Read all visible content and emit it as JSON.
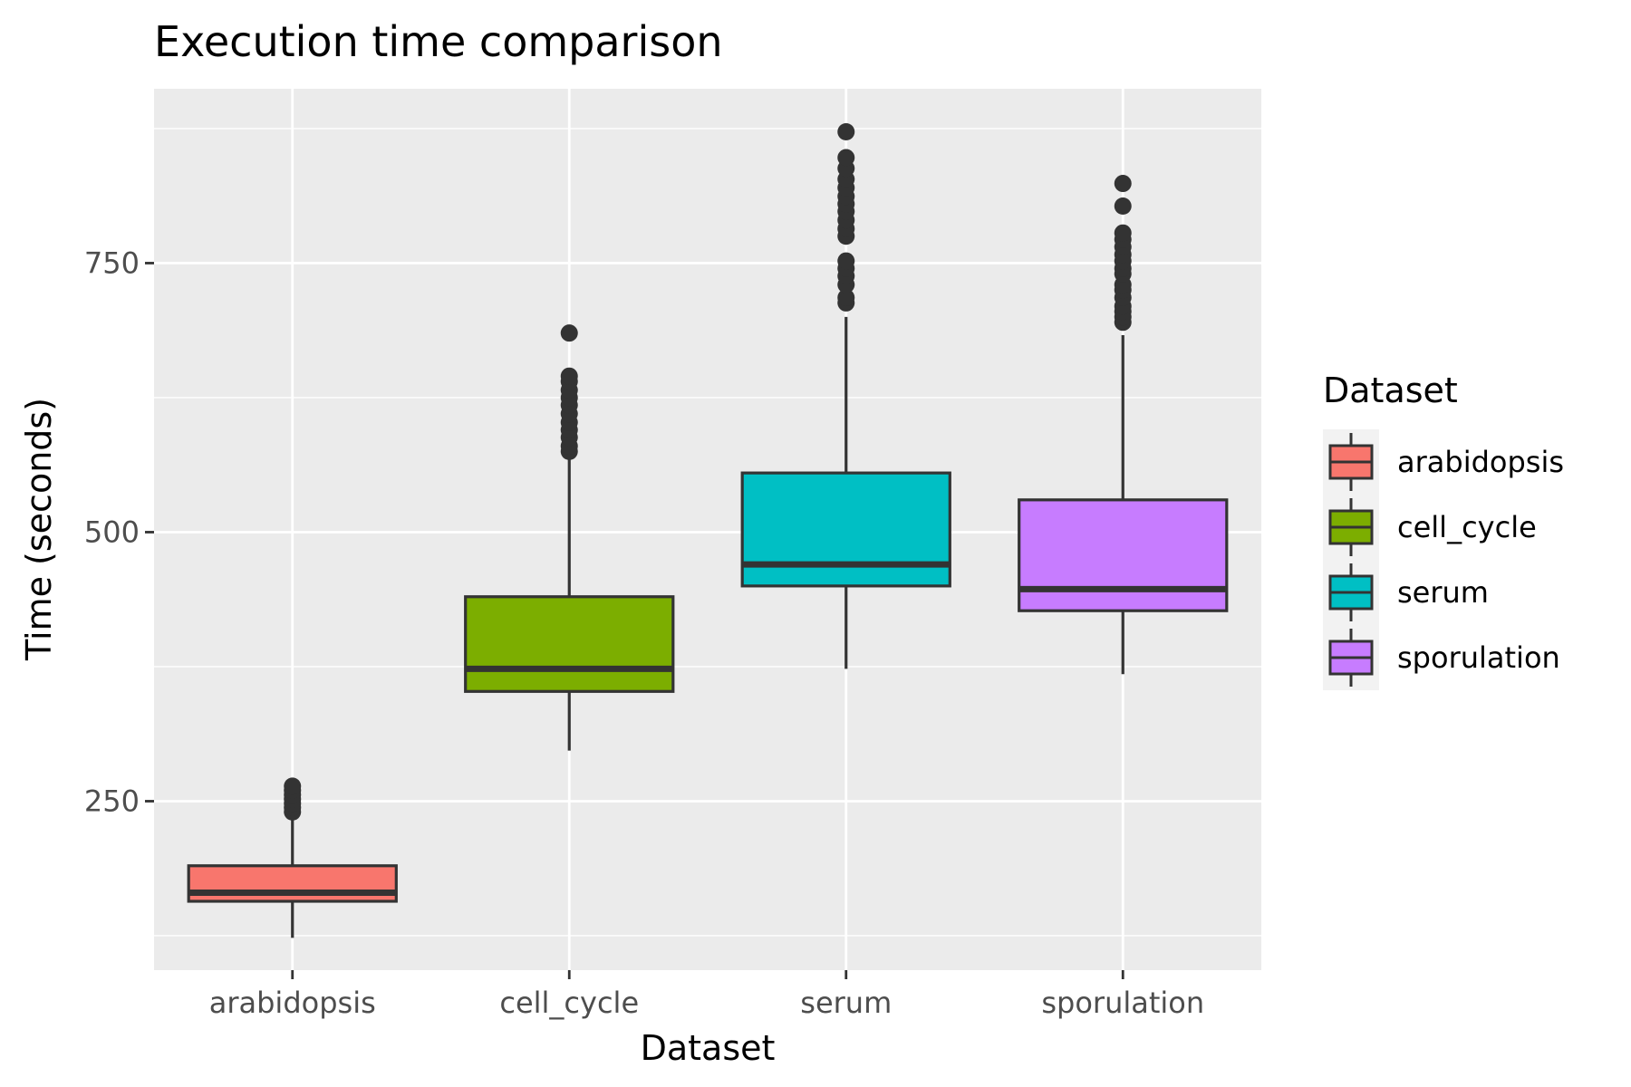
{
  "chart_data": {
    "type": "boxplot",
    "title": "Execution time comparison",
    "xlabel": "Dataset",
    "ylabel": "Time (seconds)",
    "ylim": [
      93,
      912
    ],
    "y_ticks": [
      250,
      500,
      750
    ],
    "grid": true,
    "legend": {
      "title": "Dataset",
      "position": "right"
    },
    "categories": [
      "arabidopsis",
      "cell_cycle",
      "serum",
      "sporulation"
    ],
    "colors": [
      "#F8766D",
      "#7CAE00",
      "#00BFC4",
      "#C77CFF"
    ],
    "boxes": [
      {
        "name": "arabidopsis",
        "whisker_low": 123,
        "q1": 157,
        "median": 165,
        "q3": 190,
        "whisker_high": 235,
        "outliers": [
          240,
          244,
          248,
          252,
          256,
          260,
          264
        ]
      },
      {
        "name": "cell_cycle",
        "whisker_low": 297,
        "q1": 352,
        "median": 373,
        "q3": 440,
        "whisker_high": 568,
        "outliers": [
          575,
          580,
          588,
          595,
          602,
          610,
          618,
          625,
          632,
          640,
          645,
          685
        ]
      },
      {
        "name": "serum",
        "whisker_low": 373,
        "q1": 450,
        "median": 470,
        "q3": 555,
        "whisker_high": 700,
        "outliers": [
          713,
          718,
          730,
          738,
          745,
          752,
          775,
          782,
          790,
          798,
          805,
          812,
          820,
          828,
          838,
          848,
          872
        ]
      },
      {
        "name": "sporulation",
        "whisker_low": 368,
        "q1": 427,
        "median": 447,
        "q3": 530,
        "whisker_high": 683,
        "outliers": [
          695,
          700,
          705,
          710,
          718,
          725,
          730,
          740,
          745,
          752,
          758,
          765,
          772,
          778,
          803,
          824
        ]
      }
    ]
  }
}
